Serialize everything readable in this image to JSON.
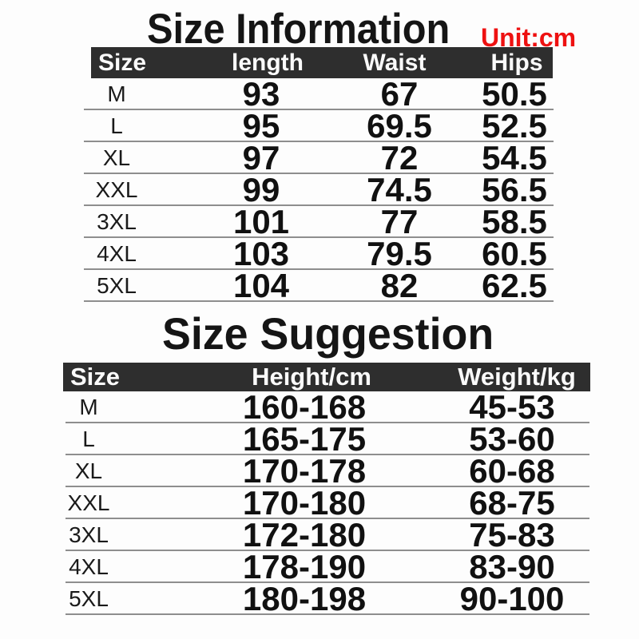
{
  "colors": {
    "header_bg": "#2e2e2e",
    "header_text": "#fafafa",
    "accent_red": "#ee1111",
    "text": "#161616",
    "divider": "#8e8e8e",
    "background": "#fdfdfd"
  },
  "chart_data": [
    {
      "type": "table",
      "title": "Size Information",
      "unit": "Unit:cm",
      "columns": [
        "Size",
        "length",
        "Waist",
        "Hips"
      ],
      "rows": [
        [
          "M",
          "93",
          "67",
          "50.5"
        ],
        [
          "L",
          "95",
          "69.5",
          "52.5"
        ],
        [
          "XL",
          "97",
          "72",
          "54.5"
        ],
        [
          "XXL",
          "99",
          "74.5",
          "56.5"
        ],
        [
          "3XL",
          "101",
          "77",
          "58.5"
        ],
        [
          "4XL",
          "103",
          "79.5",
          "60.5"
        ],
        [
          "5XL",
          "104",
          "82",
          "62.5"
        ]
      ]
    },
    {
      "type": "table",
      "title": "Size Suggestion",
      "columns": [
        "Size",
        "Height/cm",
        "Weight/kg"
      ],
      "rows": [
        [
          "M",
          "160-168",
          "45-53"
        ],
        [
          "L",
          "165-175",
          "53-60"
        ],
        [
          "XL",
          "170-178",
          "60-68"
        ],
        [
          "XXL",
          "170-180",
          "68-75"
        ],
        [
          "3XL",
          "172-180",
          "75-83"
        ],
        [
          "4XL",
          "178-190",
          "83-90"
        ],
        [
          "5XL",
          "180-198",
          "90-100"
        ]
      ]
    }
  ]
}
